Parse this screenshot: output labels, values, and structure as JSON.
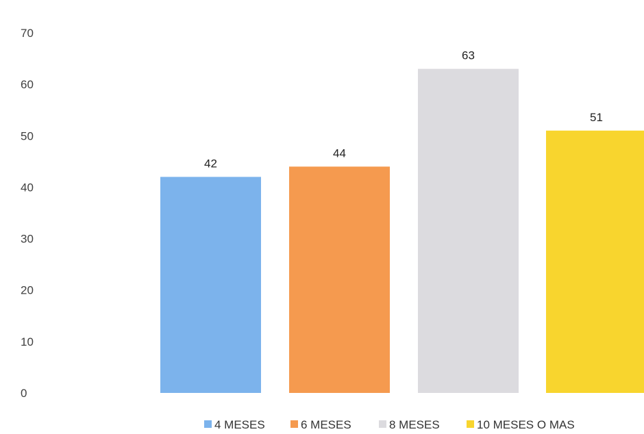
{
  "chart_data": {
    "type": "bar",
    "title": "",
    "xlabel": "",
    "ylabel": "",
    "categories": [
      "4 MESES",
      "6 MESES",
      "8 MESES",
      "10 MESES O MAS"
    ],
    "series": [
      {
        "values": [
          42,
          44,
          63,
          51
        ],
        "colors": [
          "#7cb3ec",
          "#f59a4f",
          "#dcdbdf",
          "#f8d52e"
        ]
      }
    ],
    "ylim": [
      0,
      70
    ],
    "yticks": [
      0,
      10,
      20,
      30,
      40,
      50,
      60,
      70
    ],
    "data_labels": true,
    "grid": false,
    "legend": {
      "position": "bottom",
      "entries": [
        "4 MESES",
        "6 MESES",
        "8 MESES",
        "10 MESES O MAS"
      ]
    }
  }
}
